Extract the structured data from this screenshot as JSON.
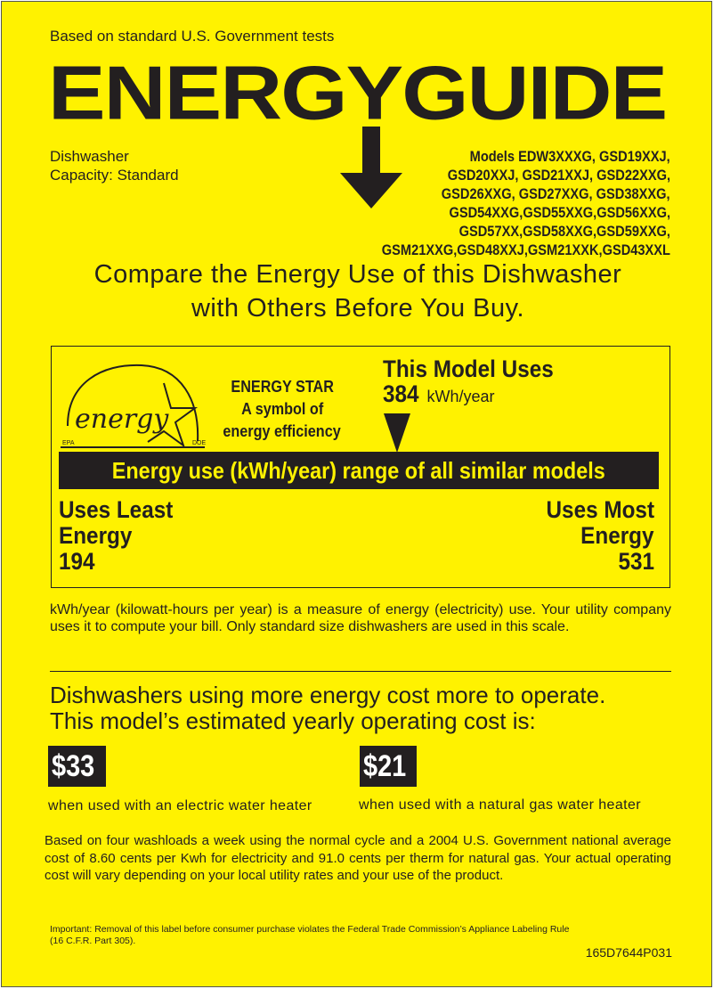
{
  "header": {
    "tests": "Based on standard U.S. Government tests",
    "title": "ENERGYGUIDE"
  },
  "product": {
    "type": "Dishwasher",
    "capacity": "Capacity: Standard"
  },
  "models": [
    "Models EDW3XXXG, GSD19XXJ,",
    "GSD20XXJ,  GSD21XXJ, GSD22XXG,",
    "GSD26XXG, GSD27XXG, GSD38XXG,",
    "GSD54XXG,GSD55XXG,GSD56XXG,",
    "GSD57XX,GSD58XXG,GSD59XXG,",
    "GSM21XXG,GSD48XXJ,GSM21XXK,GSD43XXL"
  ],
  "compare": [
    "Compare the Energy Use of this Dishwasher",
    "with Others Before You Buy."
  ],
  "energy_star": {
    "logo_text": "energy",
    "epa": "EPA",
    "doe": "DOE",
    "lines": [
      "ENERGY STAR",
      "A symbol of",
      "energy efficiency"
    ]
  },
  "usage": {
    "heading": "This Model Uses",
    "value": "384",
    "unit": "kWh/year",
    "range_label": "Energy use (kWh/year) range of all similar models",
    "least_label": [
      "Uses Least",
      "Energy"
    ],
    "least": "194",
    "most_label": [
      "Uses Most",
      "Energy"
    ],
    "most": "531",
    "position_fraction": 0.564
  },
  "explanation": "kWh/year (kilowatt-hours per year) is a measure of energy (electricity) use. Your utility company uses it to compute your bill. Only standard size dishwashers are used in this scale.",
  "cost": {
    "heading": [
      "Dishwashers using more energy cost more to operate.",
      "This model’s estimated yearly operating cost is:"
    ],
    "electric": "$33",
    "electric_caption": "when used with an electric water heater",
    "gas": "$21",
    "gas_caption": "when used with a natural gas water heater"
  },
  "basis": "Based on four washloads a week using the normal cycle and a 2004 U.S. Government national average cost of 8.60 cents per Kwh for electricity and 91.0 cents per therm for natural gas. Your actual operating cost will vary depending on your local utility rates and your use of the product.",
  "important": [
    "Important: Removal of this label before consumer purchase violates the Federal Trade Commission’s Appliance Labeling Rule",
    "(16 C.F.R. Part 305)."
  ],
  "part_number": "165D7644P031",
  "colors": {
    "background": "#fff200",
    "ink": "#231f20"
  }
}
